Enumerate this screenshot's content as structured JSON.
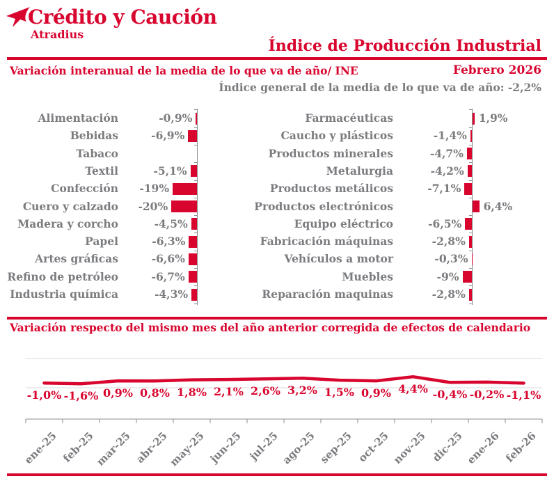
{
  "logo": {
    "brand": "Crédito y Caución",
    "sub": "Atradius"
  },
  "header": {
    "title": "Índice de Producción Industrial"
  },
  "meta": {
    "left_subtitle": "Variación interanual de la media de lo que va de año/ INE",
    "period": "Febrero 2026",
    "general_index": "Índice general de la media de lo que va de año:  -2,2%"
  },
  "section2": {
    "title": "Variación respecto del mismo mes del año anterior corregida de efectos de calendario"
  },
  "colors": {
    "brand_red": "#D8062F",
    "gray_text": "#7B7C7F",
    "axis_gray": "#8C8C8C",
    "gridline": "#D9D9D9"
  },
  "chart_data": [
    {
      "type": "bar",
      "orientation": "horizontal",
      "side": "left",
      "title": "Variación interanual de la media de lo que va de año/ INE",
      "categories": [
        "Alimentación",
        "Bebidas",
        "Tabaco",
        "Textil",
        "Confección",
        "Cuero y calzado",
        "Madera y corcho",
        "Papel",
        "Artes gráficas",
        "Refino de petróleo",
        "Industria química"
      ],
      "values": [
        -0.9,
        -6.9,
        0,
        -5.1,
        -19,
        -20,
        -4.5,
        -6.3,
        -6.6,
        -6.7,
        -4.3
      ],
      "labels": [
        "-0,9%",
        "-6,9%",
        "",
        "-5,1%",
        "-19%",
        "-20%",
        "-4,5%",
        "-6,3%",
        "-6,6%",
        "-6,7%",
        "-4,3%"
      ],
      "unit": "%"
    },
    {
      "type": "bar",
      "orientation": "horizontal",
      "side": "right",
      "title": "Variación interanual de la media de lo que va de año/ INE",
      "categories": [
        "Farmacéuticas",
        "Caucho y plásticos",
        "Productos minerales",
        "Metalurgia",
        "Productos metálicos",
        "Productos electrónicos",
        "Equipo eléctrico",
        "Fabricación máquinas",
        "Vehículos a motor",
        "Muebles",
        "Reparación maquinas"
      ],
      "values": [
        1.9,
        -1.4,
        -4.7,
        -4.2,
        -7.1,
        6.4,
        -6.5,
        -2.8,
        -0.3,
        -9,
        -2.8
      ],
      "labels": [
        "1,9%",
        "-1,4%",
        "-4,7%",
        "-4,2%",
        "-7,1%",
        "6,4%",
        "-6,5%",
        "-2,8%",
        "-0,3%",
        "-9%",
        "-2,8%"
      ],
      "unit": "%"
    },
    {
      "type": "line",
      "title": "Variación respecto del mismo mes del año anterior corregida de efectos de calendario",
      "x": [
        "ene-25",
        "feb-25",
        "mar-25",
        "abr-25",
        "may-25",
        "jun-25",
        "jul-25",
        "ago-25",
        "sep-25",
        "oct-25",
        "nov-25",
        "dic-25",
        "ene-26",
        "feb-26"
      ],
      "values": [
        -1.0,
        -1.6,
        0.9,
        0.8,
        1.8,
        2.1,
        2.6,
        3.2,
        1.5,
        0.9,
        4.4,
        -0.4,
        -0.2,
        -1.1
      ],
      "labels": [
        "-1,0%",
        "-1,6%",
        "0,9%",
        "0,8%",
        "1,8%",
        "2,1%",
        "2,6%",
        "3,2%",
        "1,5%",
        "0,9%",
        "4,4%",
        "-0,4%",
        "-0,2%",
        "-1,1%"
      ],
      "unit": "%",
      "grid": "horizontal-top-bottom",
      "legend": "none"
    }
  ]
}
